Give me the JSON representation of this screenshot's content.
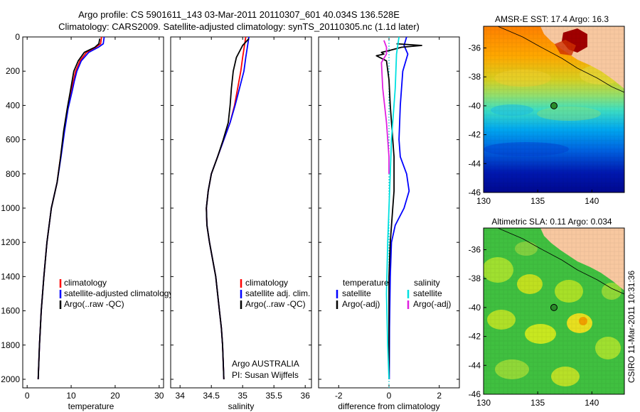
{
  "header": {
    "line1": "Argo profile: CS 5901611_143 03-Mar-2011 20110307_601 40.034S 136.528E",
    "line2": "Climatology: CARS2009. Satellite-adjusted climatology: synTS_20110305.nc (1.1d later)"
  },
  "colors": {
    "climatology": "#ff0000",
    "satellite": "#0000ff",
    "argo": "#000000",
    "sal_satellite": "#00e0e0",
    "sal_argo": "#e020e0",
    "land": "#f8c8a0"
  },
  "chart_data": [
    {
      "type": "line",
      "xlabel": "temperature",
      "xlim": [
        -1,
        31
      ],
      "xticks": [
        "0",
        "10",
        "20",
        "30"
      ],
      "ylim": [
        0,
        2050
      ],
      "yticks": [
        "0",
        "200",
        "400",
        "600",
        "800",
        "1000",
        "1200",
        "1400",
        "1600",
        "1800",
        "2000"
      ],
      "legend": [
        "climatology",
        "satellite-adjusted climatology",
        "Argo(..raw -QC)"
      ],
      "series": [
        {
          "name": "climatology",
          "color": "#ff0000",
          "points": [
            [
              16.9,
              0
            ],
            [
              16.7,
              40
            ],
            [
              15.6,
              60
            ],
            [
              13.5,
              90
            ],
            [
              12.0,
              140
            ],
            [
              11.0,
              200
            ],
            [
              10.5,
              260
            ],
            [
              10.0,
              320
            ],
            [
              9.2,
              420
            ],
            [
              8.4,
              550
            ],
            [
              7.6,
              700
            ],
            [
              6.8,
              850
            ],
            [
              5.5,
              1000
            ],
            [
              4.5,
              1200
            ],
            [
              3.8,
              1400
            ],
            [
              3.2,
              1600
            ],
            [
              2.8,
              1800
            ],
            [
              2.5,
              2000
            ]
          ]
        },
        {
          "name": "satellite-adjusted climatology",
          "color": "#0000ff",
          "points": [
            [
              17.5,
              0
            ],
            [
              17.3,
              40
            ],
            [
              16.2,
              60
            ],
            [
              14.0,
              90
            ],
            [
              12.3,
              140
            ],
            [
              11.3,
              200
            ],
            [
              10.7,
              260
            ],
            [
              10.2,
              320
            ],
            [
              9.3,
              420
            ],
            [
              8.5,
              550
            ],
            [
              7.7,
              700
            ],
            [
              6.8,
              850
            ],
            [
              5.5,
              1000
            ],
            [
              4.5,
              1200
            ],
            [
              3.8,
              1400
            ],
            [
              3.2,
              1600
            ],
            [
              2.8,
              1800
            ],
            [
              2.5,
              2000
            ]
          ]
        },
        {
          "name": "Argo(..raw -QC)",
          "color": "#000000",
          "points": [
            [
              16.5,
              10
            ],
            [
              16.3,
              40
            ],
            [
              15.4,
              60
            ],
            [
              13.0,
              90
            ],
            [
              11.6,
              140
            ],
            [
              10.6,
              200
            ],
            [
              10.2,
              260
            ],
            [
              9.8,
              320
            ],
            [
              9.1,
              420
            ],
            [
              8.3,
              550
            ],
            [
              7.6,
              700
            ],
            [
              6.8,
              850
            ],
            [
              5.5,
              1000
            ],
            [
              4.5,
              1200
            ],
            [
              3.8,
              1400
            ],
            [
              3.2,
              1600
            ],
            [
              2.8,
              1800
            ],
            [
              2.5,
              2000
            ]
          ]
        }
      ]
    },
    {
      "type": "line",
      "xlabel": "salinity",
      "xlim": [
        33.85,
        36.1
      ],
      "xticks": [
        "34",
        "34.5",
        "35",
        "35.5",
        "36"
      ],
      "ylim": [
        0,
        2050
      ],
      "legend": [
        "climatology",
        "satellite adj. clim.",
        "Argo(..raw -QC)"
      ],
      "annotation": [
        "Argo AUSTRALIA",
        "PI: Susan Wijffels"
      ],
      "series": [
        {
          "name": "climatology",
          "color": "#ff0000",
          "points": [
            [
              35.05,
              0
            ],
            [
              35.03,
              50
            ],
            [
              35.0,
              120
            ],
            [
              34.97,
              200
            ],
            [
              34.92,
              300
            ],
            [
              34.87,
              400
            ],
            [
              34.8,
              500
            ],
            [
              34.7,
              600
            ],
            [
              34.6,
              700
            ],
            [
              34.5,
              800
            ],
            [
              34.45,
              900
            ],
            [
              34.42,
              1000
            ],
            [
              34.43,
              1100
            ],
            [
              34.47,
              1200
            ],
            [
              34.52,
              1300
            ],
            [
              34.57,
              1400
            ],
            [
              34.6,
              1500
            ],
            [
              34.63,
              1600
            ],
            [
              34.66,
              1700
            ],
            [
              34.68,
              1800
            ],
            [
              34.69,
              1900
            ],
            [
              34.7,
              2000
            ]
          ]
        },
        {
          "name": "satellite adj. clim.",
          "color": "#0000ff",
          "points": [
            [
              35.1,
              0
            ],
            [
              35.08,
              50
            ],
            [
              35.05,
              120
            ],
            [
              35.02,
              200
            ],
            [
              34.95,
              300
            ],
            [
              34.88,
              400
            ],
            [
              34.8,
              500
            ],
            [
              34.7,
              600
            ],
            [
              34.6,
              700
            ],
            [
              34.5,
              800
            ],
            [
              34.45,
              900
            ],
            [
              34.42,
              1000
            ],
            [
              34.43,
              1100
            ],
            [
              34.47,
              1200
            ],
            [
              34.52,
              1300
            ],
            [
              34.57,
              1400
            ],
            [
              34.6,
              1500
            ],
            [
              34.63,
              1600
            ],
            [
              34.66,
              1700
            ],
            [
              34.68,
              1800
            ],
            [
              34.69,
              1900
            ],
            [
              34.7,
              2000
            ]
          ]
        },
        {
          "name": "Argo(..raw -QC)",
          "color": "#000000",
          "points": [
            [
              35.1,
              10
            ],
            [
              35.0,
              50
            ],
            [
              34.9,
              120
            ],
            [
              34.85,
              200
            ],
            [
              34.82,
              300
            ],
            [
              34.8,
              400
            ],
            [
              34.77,
              500
            ],
            [
              34.69,
              600
            ],
            [
              34.6,
              700
            ],
            [
              34.5,
              800
            ],
            [
              34.45,
              900
            ],
            [
              34.42,
              1000
            ],
            [
              34.43,
              1100
            ],
            [
              34.47,
              1200
            ],
            [
              34.52,
              1300
            ],
            [
              34.57,
              1400
            ],
            [
              34.6,
              1500
            ],
            [
              34.63,
              1600
            ],
            [
              34.66,
              1700
            ],
            [
              34.68,
              1800
            ],
            [
              34.69,
              1900
            ],
            [
              34.7,
              2000
            ]
          ]
        }
      ]
    },
    {
      "type": "line",
      "xlabel": "difference from climatology",
      "xlim": [
        -2.8,
        2.8
      ],
      "xticks": [
        "-2",
        "0",
        "2"
      ],
      "ylim": [
        0,
        2050
      ],
      "legend_groups": [
        {
          "title": "temperature",
          "items": [
            "satellite",
            "Argo(-adj)"
          ]
        },
        {
          "title": "salinity",
          "items": [
            "satellite",
            "Argo(-adj)"
          ]
        }
      ],
      "series": [
        {
          "name": "temperature satellite",
          "color": "#0000ff",
          "points": [
            [
              0.7,
              0
            ],
            [
              0.6,
              50
            ],
            [
              0.75,
              100
            ],
            [
              0.55,
              200
            ],
            [
              0.45,
              400
            ],
            [
              0.4,
              600
            ],
            [
              0.45,
              700
            ],
            [
              0.7,
              800
            ],
            [
              0.8,
              900
            ],
            [
              0.6,
              1000
            ],
            [
              0.25,
              1100
            ],
            [
              0.1,
              1200
            ],
            [
              0.05,
              1400
            ],
            [
              0.02,
              1700
            ],
            [
              0.01,
              2000
            ]
          ]
        },
        {
          "name": "temperature Argo(-adj)",
          "color": "#000000",
          "points": [
            [
              0.3,
              40
            ],
            [
              1.3,
              50
            ],
            [
              0.5,
              60
            ],
            [
              0.0,
              80
            ],
            [
              -0.3,
              90
            ],
            [
              -0.2,
              100
            ],
            [
              -0.5,
              110
            ],
            [
              -0.1,
              140
            ],
            [
              0.0,
              250
            ],
            [
              0.05,
              400
            ],
            [
              0.2,
              700
            ],
            [
              0.2,
              900
            ],
            [
              0.15,
              1000
            ],
            [
              0.05,
              1200
            ],
            [
              0.0,
              1400
            ],
            [
              0.0,
              2000
            ]
          ]
        },
        {
          "name": "salinity satellite",
          "color": "#00e0e0",
          "points": [
            [
              0.4,
              0
            ],
            [
              0.3,
              100
            ],
            [
              0.25,
              300
            ],
            [
              0.1,
              600
            ],
            [
              0.05,
              800
            ],
            [
              0.0,
              1000
            ],
            [
              -0.05,
              1200
            ],
            [
              -0.1,
              1500
            ],
            [
              -0.05,
              1800
            ],
            [
              0.0,
              2000
            ]
          ]
        },
        {
          "name": "salinity Argo(-adj)",
          "color": "#e020e0",
          "points": [
            [
              -0.2,
              20
            ],
            [
              -0.1,
              60
            ],
            [
              -0.1,
              100
            ],
            [
              -0.3,
              150
            ],
            [
              -0.25,
              300
            ],
            [
              -0.1,
              500
            ],
            [
              0.0,
              700
            ],
            [
              0.0,
              800
            ]
          ]
        }
      ]
    },
    {
      "type": "heatmap",
      "title": "AMSR-E SST: 17.4 Argo: 16.3",
      "xlim": [
        130,
        143
      ],
      "ylim": [
        -46,
        -34.5
      ],
      "xticks": [
        "130",
        "135",
        "140"
      ],
      "yticks": [
        "-36",
        "-38",
        "-40",
        "-42",
        "-44",
        "-46"
      ],
      "marker": [
        136.5,
        -40.0
      ],
      "colormap": "jet"
    },
    {
      "type": "heatmap",
      "title": "Altimetric SLA: 0.11 Argo: 0.034",
      "xlim": [
        130,
        143
      ],
      "ylim": [
        -46,
        -34.5
      ],
      "xticks": [
        "130",
        "135",
        "140"
      ],
      "yticks": [
        "-36",
        "-38",
        "-40",
        "-42",
        "-44",
        "-46"
      ],
      "marker": [
        136.5,
        -40.0
      ],
      "colormap": "jet"
    }
  ],
  "side_stamp": "CSIRO 11-Mar-2011 10:31:36"
}
